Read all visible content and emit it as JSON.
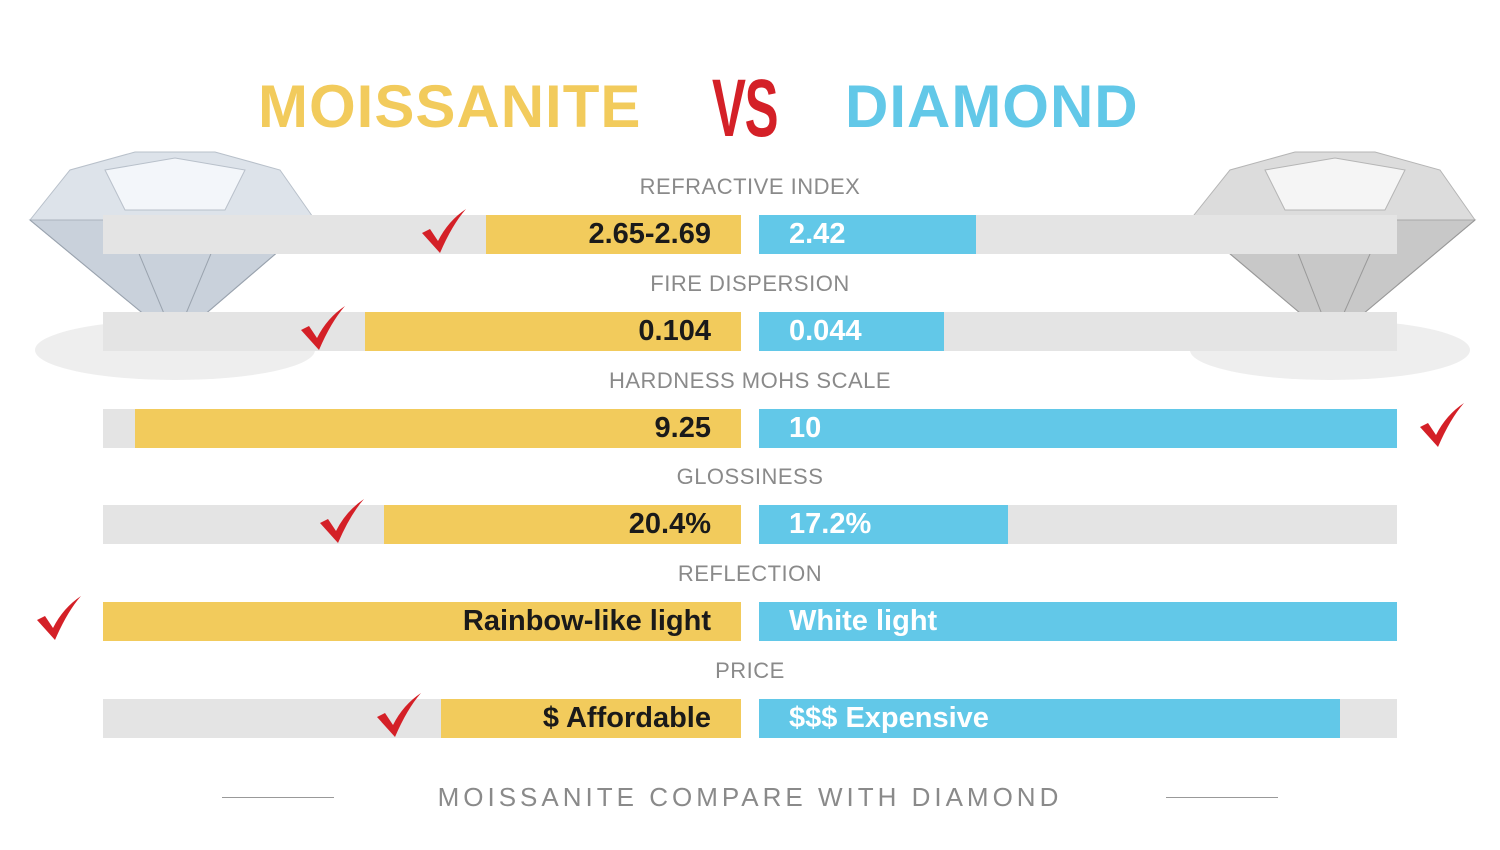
{
  "header": {
    "left_title": "MOISSANITE",
    "vs": "VS",
    "right_title": "DIAMOND"
  },
  "colors": {
    "moissanite": "#f2cb5c",
    "diamond": "#62c8e8",
    "track": "#e4e4e4",
    "check": "#d42027",
    "vs": "#d42027"
  },
  "chart_data": {
    "type": "bar",
    "orientation": "diverging-horizontal",
    "series": [
      {
        "name": "MOISSANITE"
      },
      {
        "name": "DIAMOND"
      }
    ],
    "rows": [
      {
        "label": "REFRACTIVE INDEX",
        "left_text": "2.65-2.69",
        "right_text": "2.42",
        "left_fill_pct": 40,
        "right_fill_pct": 34,
        "winner": "left"
      },
      {
        "label": "FIRE DISPERSION",
        "left_text": "0.104",
        "right_text": "0.044",
        "left_fill_pct": 59,
        "right_fill_pct": 29,
        "winner": "left"
      },
      {
        "label": "HARDNESS MOHS SCALE",
        "left_text": "9.25",
        "right_text": "10",
        "left_fill_pct": 95,
        "right_fill_pct": 100,
        "winner": "right"
      },
      {
        "label": "GLOSSINESS",
        "left_text": "20.4%",
        "right_text": "17.2%",
        "left_fill_pct": 56,
        "right_fill_pct": 39,
        "winner": "left"
      },
      {
        "label": "REFLECTION",
        "left_text": "Rainbow-like light",
        "right_text": "White light",
        "left_fill_pct": 100,
        "right_fill_pct": 100,
        "winner": "left"
      },
      {
        "label": "PRICE",
        "left_text": "$ Affordable",
        "right_text": "$$$ Expensive",
        "left_fill_pct": 47,
        "right_fill_pct": 91,
        "winner": "left"
      }
    ]
  },
  "footer": {
    "caption": "MOISSANITE COMPARE WITH DIAMOND"
  },
  "icons": {
    "winner": "checkmark-icon",
    "images": [
      "moissanite-gem-image",
      "diamond-gem-image"
    ]
  }
}
